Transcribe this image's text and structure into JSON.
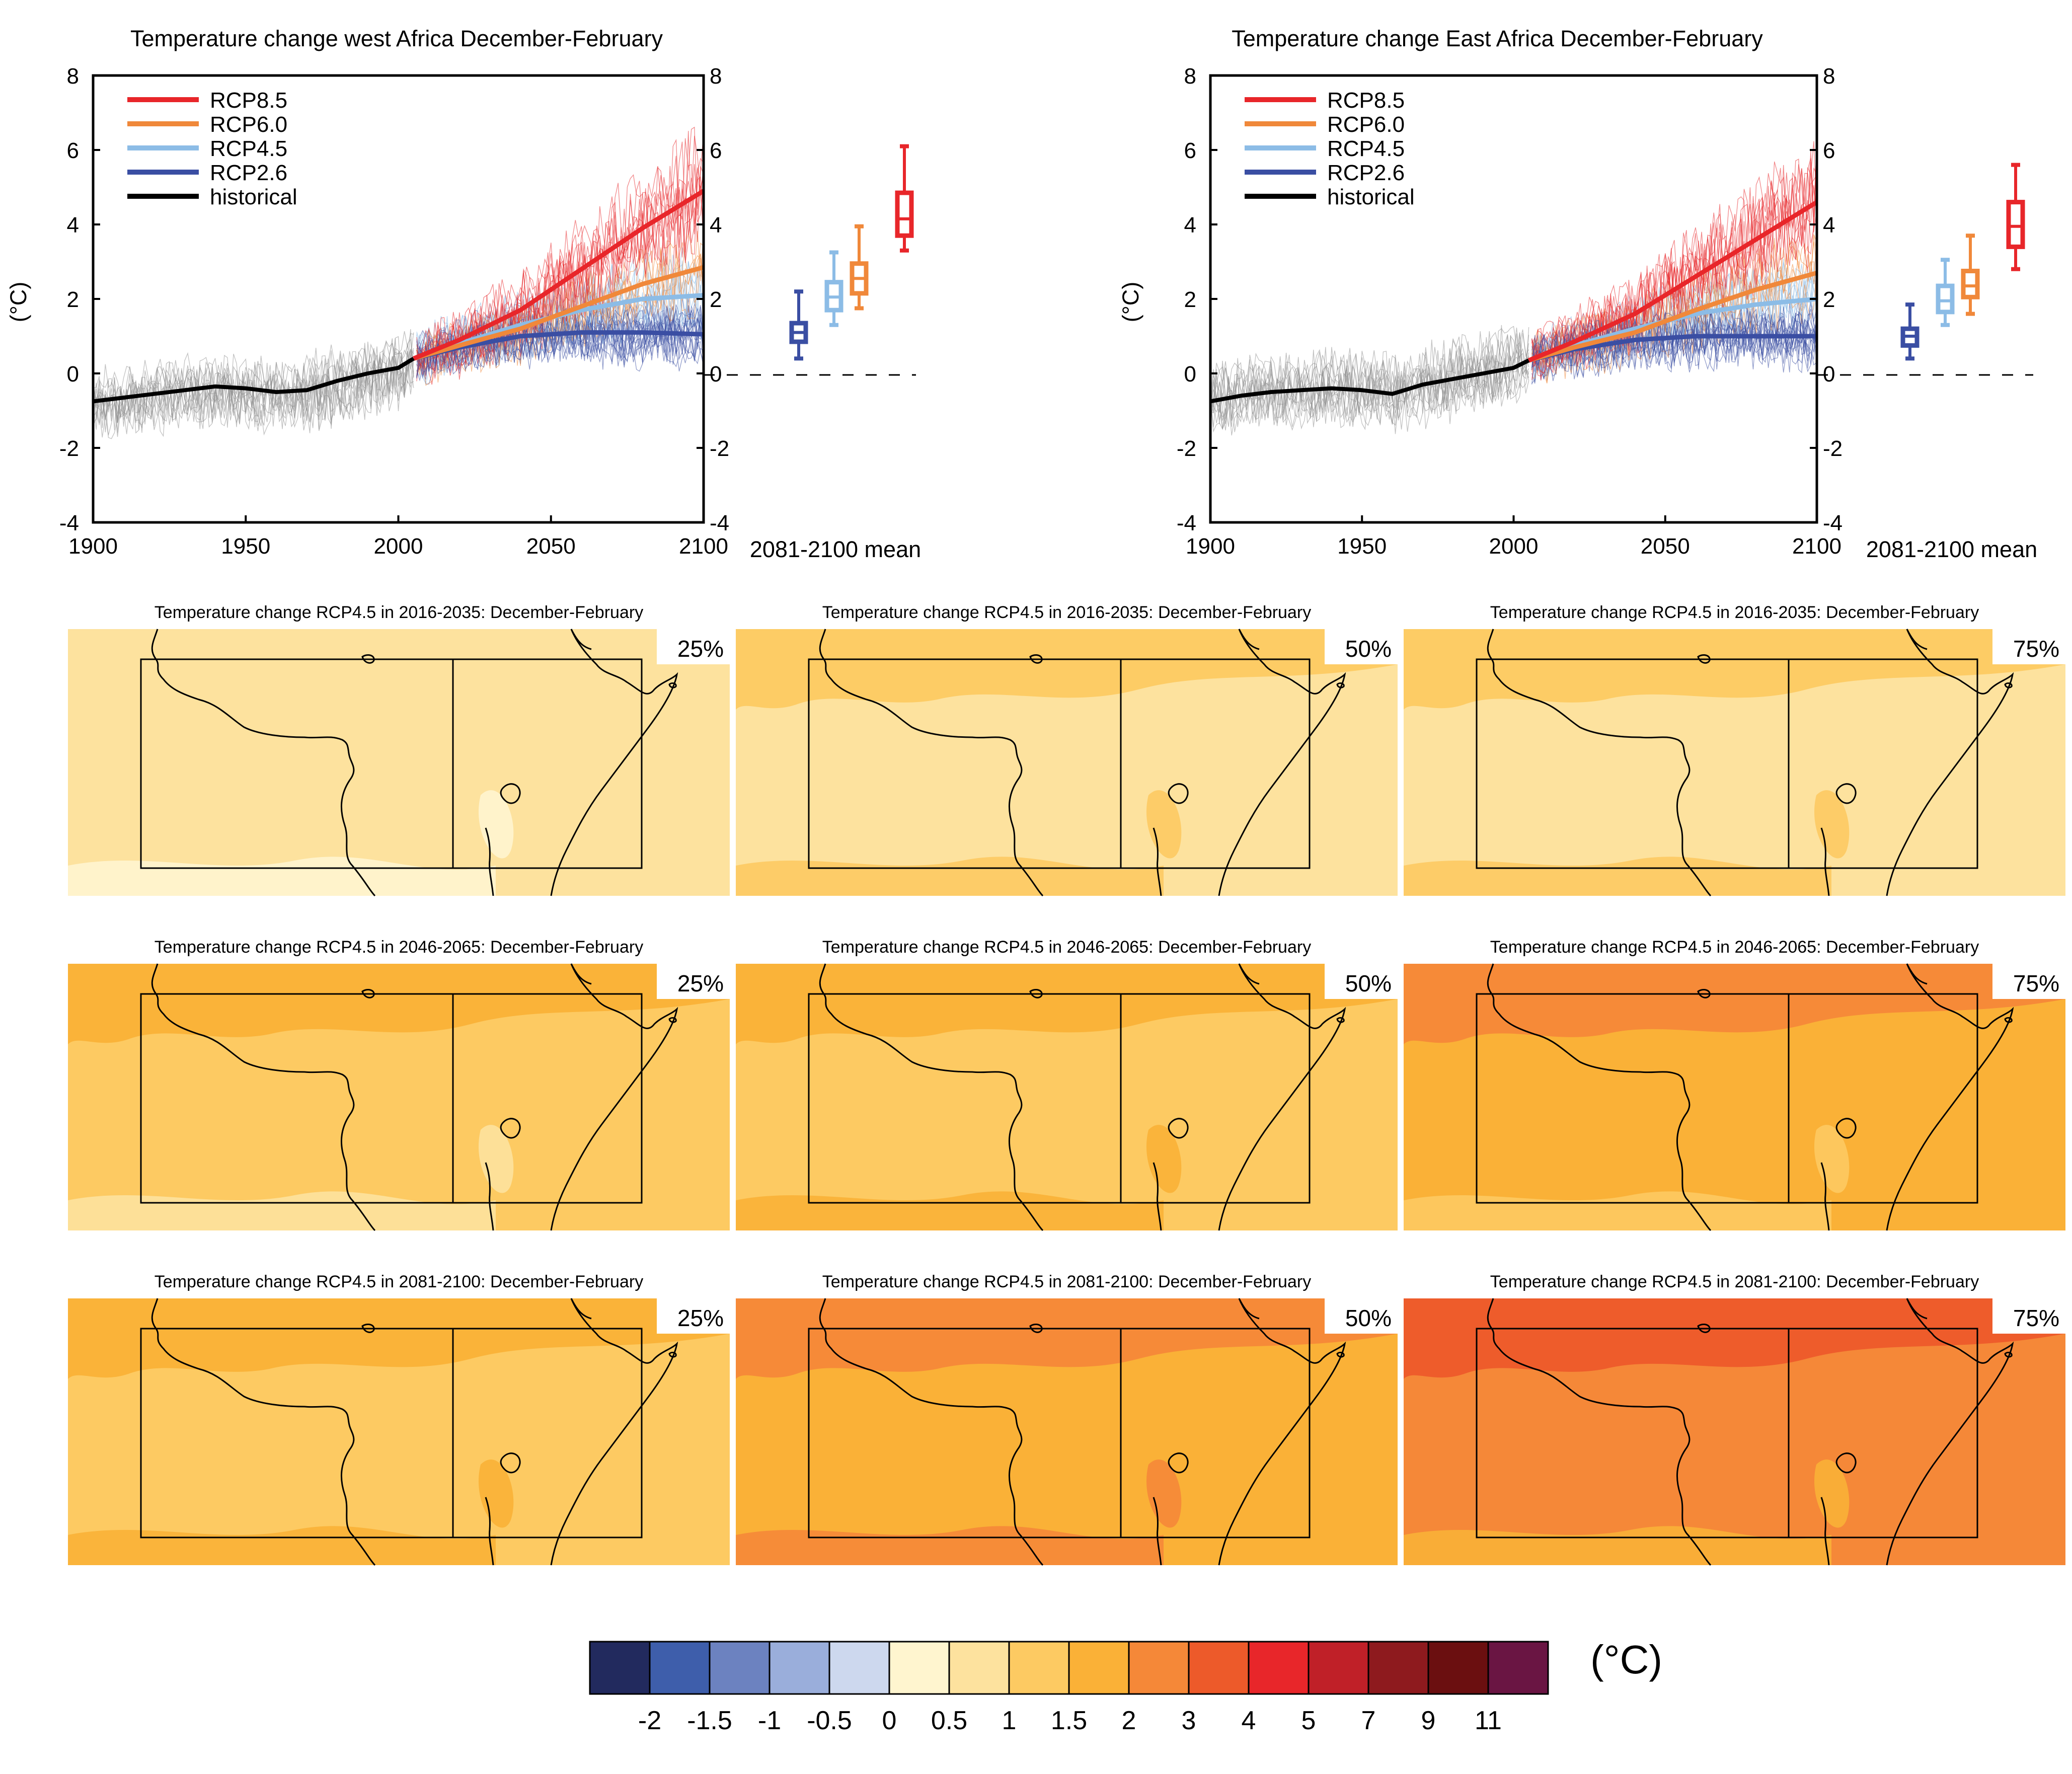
{
  "palette": {
    "rcp85": "#e8262a",
    "rcp60": "#f0883a",
    "rcp45": "#8cbce6",
    "rcp26": "#3a4ea3",
    "historical": "#000000",
    "spread": "#8f8f8f"
  },
  "chart_data": [
    {
      "type": "line",
      "title": "Temperature change west Africa December-February",
      "ylabel": "(°C)",
      "xlim": [
        1900,
        2100
      ],
      "ylim": [
        -4,
        8
      ],
      "x_ticks": [
        "1900",
        "1950",
        "2000",
        "2050",
        "2100"
      ],
      "y_ticks": [
        "-4",
        "-2",
        "0",
        "2",
        "4",
        "6",
        "8"
      ],
      "legend": [
        "RCP8.5",
        "RCP6.0",
        "RCP4.5",
        "RCP2.6",
        "historical"
      ],
      "legend_position": "top-left",
      "series": [
        {
          "name": "historical",
          "x": [
            1900,
            1910,
            1920,
            1930,
            1940,
            1950,
            1960,
            1970,
            1980,
            1990,
            2000,
            2005
          ],
          "y": [
            -0.75,
            -0.65,
            -0.55,
            -0.45,
            -0.35,
            -0.4,
            -0.5,
            -0.45,
            -0.2,
            0.0,
            0.15,
            0.4
          ]
        },
        {
          "name": "RCP2.6",
          "x": [
            2005,
            2020,
            2040,
            2060,
            2080,
            2100
          ],
          "y": [
            0.4,
            0.7,
            1.0,
            1.1,
            1.1,
            1.05
          ]
        },
        {
          "name": "RCP4.5",
          "x": [
            2005,
            2020,
            2040,
            2060,
            2080,
            2100
          ],
          "y": [
            0.4,
            0.8,
            1.3,
            1.7,
            2.0,
            2.1
          ]
        },
        {
          "name": "RCP6.0",
          "x": [
            2005,
            2020,
            2040,
            2060,
            2080,
            2100
          ],
          "y": [
            0.4,
            0.75,
            1.2,
            1.8,
            2.4,
            2.85
          ]
        },
        {
          "name": "RCP8.5",
          "x": [
            2005,
            2020,
            2040,
            2060,
            2080,
            2100
          ],
          "y": [
            0.4,
            0.9,
            1.7,
            2.8,
            3.9,
            4.9
          ]
        }
      ],
      "boxes_label": "2081-2100 mean",
      "boxes": [
        {
          "name": "RCP2.6",
          "min": 0.4,
          "q1": 0.85,
          "median": 1.1,
          "q3": 1.35,
          "max": 2.2
        },
        {
          "name": "RCP4.5",
          "min": 1.3,
          "q1": 1.7,
          "median": 2.05,
          "q3": 2.45,
          "max": 3.25
        },
        {
          "name": "RCP6.0",
          "min": 1.75,
          "q1": 2.15,
          "median": 2.55,
          "q3": 2.95,
          "max": 3.95
        },
        {
          "name": "RCP8.5",
          "min": 3.3,
          "q1": 3.7,
          "median": 4.15,
          "q3": 4.85,
          "max": 6.1
        }
      ]
    },
    {
      "type": "line",
      "title": "Temperature change East Africa December-February",
      "ylabel": "(°C)",
      "xlim": [
        1900,
        2100
      ],
      "ylim": [
        -4,
        8
      ],
      "x_ticks": [
        "1900",
        "1950",
        "2000",
        "2050",
        "2100"
      ],
      "y_ticks": [
        "-4",
        "-2",
        "0",
        "2",
        "4",
        "6",
        "8"
      ],
      "legend": [
        "RCP8.5",
        "RCP6.0",
        "RCP4.5",
        "RCP2.6",
        "historical"
      ],
      "legend_position": "top-left",
      "series": [
        {
          "name": "historical",
          "x": [
            1900,
            1910,
            1920,
            1930,
            1940,
            1950,
            1960,
            1970,
            1980,
            1990,
            2000,
            2005
          ],
          "y": [
            -0.75,
            -0.6,
            -0.5,
            -0.45,
            -0.4,
            -0.45,
            -0.55,
            -0.3,
            -0.15,
            0.0,
            0.15,
            0.35
          ]
        },
        {
          "name": "RCP2.6",
          "x": [
            2005,
            2020,
            2040,
            2060,
            2080,
            2100
          ],
          "y": [
            0.35,
            0.65,
            0.9,
            1.0,
            1.0,
            1.0
          ]
        },
        {
          "name": "RCP4.5",
          "x": [
            2005,
            2020,
            2040,
            2060,
            2080,
            2100
          ],
          "y": [
            0.35,
            0.75,
            1.2,
            1.6,
            1.85,
            2.0
          ]
        },
        {
          "name": "RCP6.0",
          "x": [
            2005,
            2020,
            2040,
            2060,
            2080,
            2100
          ],
          "y": [
            0.35,
            0.7,
            1.1,
            1.7,
            2.25,
            2.7
          ]
        },
        {
          "name": "RCP8.5",
          "x": [
            2005,
            2020,
            2040,
            2060,
            2080,
            2100
          ],
          "y": [
            0.35,
            0.85,
            1.6,
            2.6,
            3.6,
            4.6
          ]
        }
      ],
      "boxes_label": "2081-2100 mean",
      "boxes": [
        {
          "name": "RCP2.6",
          "min": 0.4,
          "q1": 0.75,
          "median": 1.0,
          "q3": 1.2,
          "max": 1.85
        },
        {
          "name": "RCP4.5",
          "min": 1.3,
          "q1": 1.65,
          "median": 1.95,
          "q3": 2.35,
          "max": 3.05
        },
        {
          "name": "RCP6.0",
          "min": 1.6,
          "q1": 2.05,
          "median": 2.35,
          "q3": 2.75,
          "max": 3.7
        },
        {
          "name": "RCP8.5",
          "min": 2.8,
          "q1": 3.4,
          "median": 3.95,
          "q3": 4.6,
          "max": 5.6
        }
      ]
    },
    {
      "type": "heatmap",
      "maps": [
        {
          "title": "Temperature change RCP4.5 in 2016-2035: December-February",
          "percentile": "25%",
          "base_level": 6,
          "patch_level": 5,
          "top_level": 6
        },
        {
          "title": "Temperature change RCP4.5 in 2016-2035: December-February",
          "percentile": "50%",
          "base_level": 6,
          "patch_level": 7,
          "top_level": 7
        },
        {
          "title": "Temperature change RCP4.5 in 2016-2035: December-February",
          "percentile": "75%",
          "base_level": 6,
          "patch_level": 7,
          "top_level": 7
        },
        {
          "title": "Temperature change RCP4.5 in 2046-2065: December-February",
          "percentile": "25%",
          "base_level": 7,
          "patch_level": 6,
          "top_level": 8
        },
        {
          "title": "Temperature change RCP4.5 in 2046-2065: December-February",
          "percentile": "50%",
          "base_level": 7,
          "patch_level": 8,
          "top_level": 8
        },
        {
          "title": "Temperature change RCP4.5 in 2046-2065: December-February",
          "percentile": "75%",
          "base_level": 8,
          "patch_level": 7,
          "top_level": 9
        },
        {
          "title": "Temperature change RCP4.5 in 2081-2100: December-February",
          "percentile": "25%",
          "base_level": 7,
          "patch_level": 8,
          "top_level": 8
        },
        {
          "title": "Temperature change RCP4.5 in 2081-2100: December-February",
          "percentile": "50%",
          "base_level": 8,
          "patch_level": 9,
          "top_level": 9
        },
        {
          "title": "Temperature change RCP4.5 in 2081-2100: December-February",
          "percentile": "75%",
          "base_level": 9,
          "patch_level": 8,
          "top_level": 10
        }
      ],
      "colorbar": {
        "unit": "(°C)",
        "colors": [
          "#222a5e",
          "#3e5eab",
          "#6c82c0",
          "#9aaedb",
          "#cdd8ee",
          "#fff5cf",
          "#fde29e",
          "#fdca62",
          "#fab137",
          "#f58838",
          "#ed5a2a",
          "#e8262a",
          "#c02028",
          "#8e1a1e",
          "#6b0f10",
          "#6a1543"
        ],
        "tick_labels": [
          "-2",
          "-1.5",
          "-1",
          "-0.5",
          "0",
          "0.5",
          "1",
          "1.5",
          "2",
          "3",
          "4",
          "5",
          "7",
          "9",
          "11"
        ]
      }
    }
  ]
}
